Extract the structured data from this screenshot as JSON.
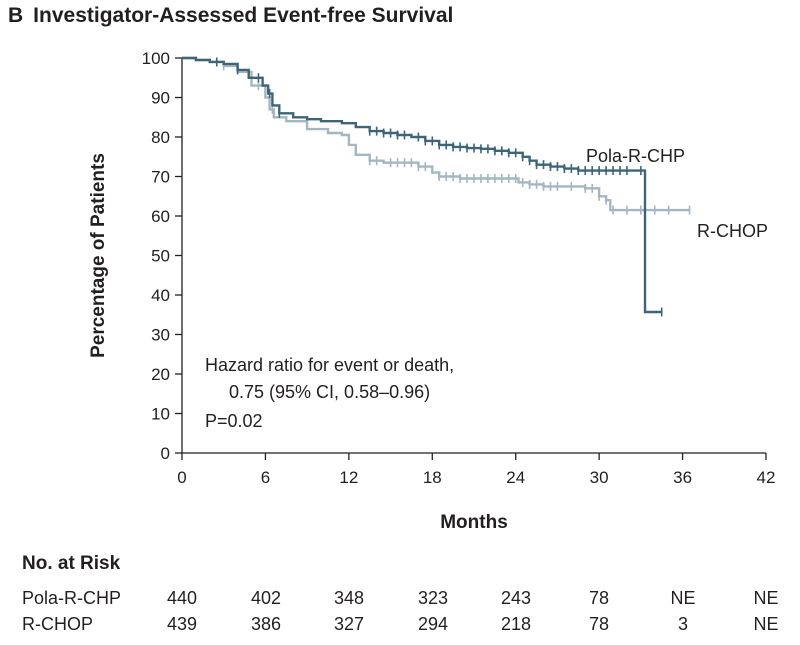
{
  "figure": {
    "panel_label": "B",
    "title": "Investigator-Assessed Event-free Survival"
  },
  "chart_data": {
    "type": "line",
    "title": "Investigator-Assessed Event-free Survival",
    "xlabel": "Months",
    "ylabel": "Percentage of Patients",
    "xlim": [
      0,
      42
    ],
    "ylim": [
      0,
      100
    ],
    "x_ticks": [
      0,
      6,
      12,
      18,
      24,
      30,
      36,
      42
    ],
    "y_ticks": [
      0,
      10,
      20,
      30,
      40,
      50,
      60,
      70,
      80,
      90,
      100
    ],
    "grid": false,
    "series": [
      {
        "name": "Pola-R-CHP",
        "color": "#3d6478",
        "points": [
          [
            0,
            100
          ],
          [
            1,
            99.5
          ],
          [
            2,
            99
          ],
          [
            3,
            98.5
          ],
          [
            4,
            97
          ],
          [
            4.8,
            95
          ],
          [
            5.8,
            93
          ],
          [
            6.2,
            91
          ],
          [
            6.5,
            88
          ],
          [
            7,
            86
          ],
          [
            8,
            85
          ],
          [
            9,
            84.5
          ],
          [
            10,
            84
          ],
          [
            11.5,
            83.5
          ],
          [
            12.5,
            82.5
          ],
          [
            13.5,
            81.5
          ],
          [
            14.5,
            81
          ],
          [
            15.5,
            80.5
          ],
          [
            16.5,
            80
          ],
          [
            17.5,
            79
          ],
          [
            18.5,
            78
          ],
          [
            19.5,
            77.5
          ],
          [
            20.5,
            77.2
          ],
          [
            21.5,
            77
          ],
          [
            22.5,
            76.5
          ],
          [
            23.5,
            76
          ],
          [
            24.5,
            75
          ],
          [
            25,
            74
          ],
          [
            25.5,
            73
          ],
          [
            26.5,
            72.5
          ],
          [
            27.5,
            72
          ],
          [
            28.5,
            71.5
          ],
          [
            30,
            71.5
          ],
          [
            31,
            71.5
          ],
          [
            32,
            71.5
          ],
          [
            33,
            71.5
          ],
          [
            33.3,
            71.5
          ],
          [
            33.3,
            35.7
          ],
          [
            34.5,
            35.7
          ]
        ],
        "censor_x": [
          2.5,
          4,
          5.5,
          6.3,
          7,
          13.5,
          14,
          14.5,
          15,
          15.5,
          16,
          17,
          17.5,
          18,
          18.5,
          19,
          19.5,
          20,
          20.5,
          21,
          21.5,
          22,
          22.5,
          23,
          23.5,
          24,
          24.5,
          25,
          25.5,
          26,
          26.5,
          27,
          27.5,
          28,
          28.5,
          29,
          29.5,
          30,
          30.5,
          31,
          31.5,
          32,
          33,
          34.5
        ]
      },
      {
        "name": "R-CHOP",
        "color": "#a4b7c1",
        "points": [
          [
            0,
            100
          ],
          [
            1,
            99.5
          ],
          [
            2,
            99
          ],
          [
            3,
            98
          ],
          [
            4,
            96.5
          ],
          [
            5,
            93
          ],
          [
            6,
            90
          ],
          [
            6.3,
            87
          ],
          [
            6.6,
            85
          ],
          [
            7.5,
            84
          ],
          [
            9,
            82
          ],
          [
            10.5,
            81
          ],
          [
            11.5,
            80.5
          ],
          [
            12,
            78
          ],
          [
            12.5,
            75.5
          ],
          [
            13.5,
            74
          ],
          [
            14.5,
            73.5
          ],
          [
            16,
            73.5
          ],
          [
            17,
            72.5
          ],
          [
            18,
            71
          ],
          [
            18.5,
            70
          ],
          [
            20,
            69.5
          ],
          [
            22,
            69.5
          ],
          [
            23.5,
            69.5
          ],
          [
            24.2,
            68.5
          ],
          [
            25,
            68
          ],
          [
            26,
            67.5
          ],
          [
            28,
            67.5
          ],
          [
            29,
            67
          ],
          [
            30,
            65
          ],
          [
            30.5,
            64
          ],
          [
            30.8,
            61.5
          ],
          [
            31.5,
            61.5
          ],
          [
            33,
            61.5
          ],
          [
            36.5,
            61.5
          ]
        ],
        "censor_x": [
          3,
          5.5,
          6.5,
          13.5,
          14,
          15,
          15.5,
          16,
          16.5,
          17,
          17.5,
          18.5,
          19,
          19.5,
          20,
          20.5,
          21,
          21.5,
          22,
          22.5,
          23,
          23.5,
          24,
          24.5,
          25,
          25.5,
          26,
          26.5,
          27,
          28,
          29,
          29.5,
          30,
          30.5,
          31,
          32,
          33,
          34,
          35,
          36.5
        ]
      }
    ],
    "annotations": {
      "pola_label": "Pola-R-CHP",
      "rchop_label": "R-CHOP",
      "hr_line1": "Hazard ratio for event or death,",
      "hr_line2": "0.75 (95% CI, 0.58–0.96)",
      "p_value": "P=0.02"
    }
  },
  "risk_table": {
    "title": "No. at Risk",
    "rows": [
      {
        "name": "Pola-R-CHP",
        "values": [
          "440",
          "402",
          "348",
          "323",
          "243",
          "78",
          "NE",
          "NE"
        ]
      },
      {
        "name": "R-CHOP",
        "values": [
          "439",
          "386",
          "327",
          "294",
          "218",
          "78",
          "3",
          "NE"
        ]
      }
    ]
  }
}
